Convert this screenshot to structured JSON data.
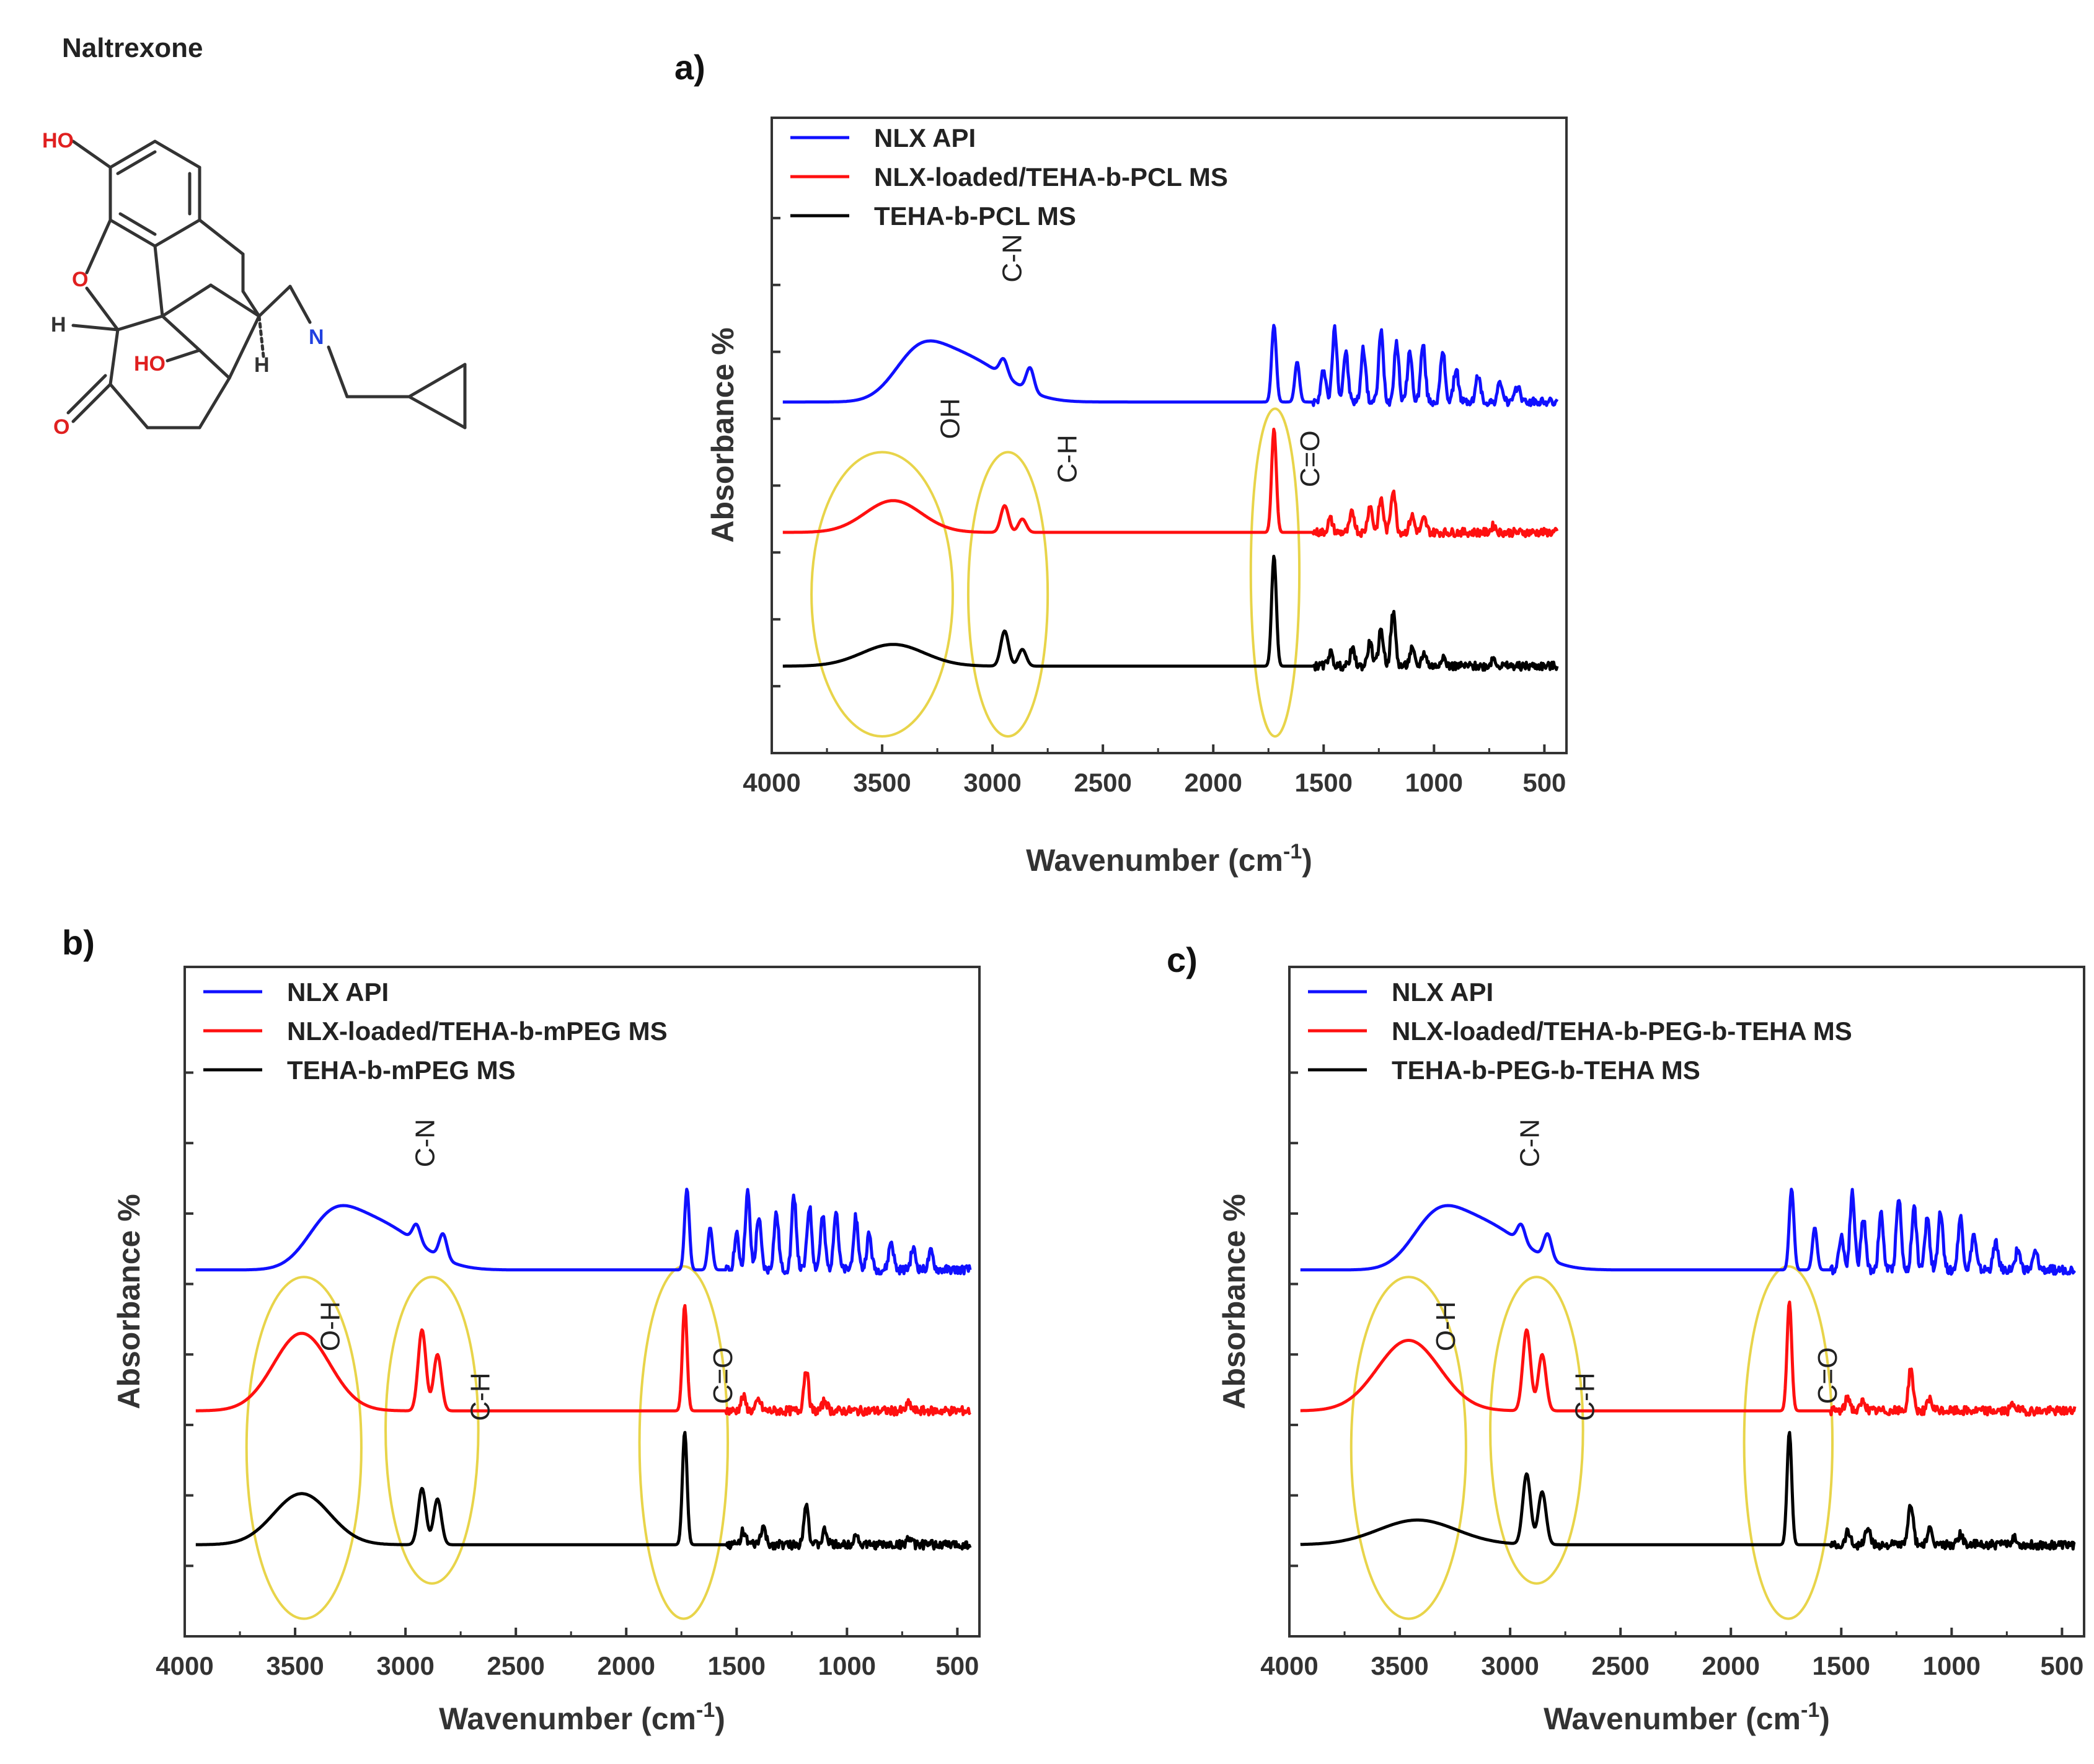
{
  "molecule": {
    "title": "Naltrexone",
    "atoms": {
      "oh_phenol": "HO",
      "ether_o": "O",
      "h_left": "H",
      "oh_mid": "HO",
      "h_right": "H",
      "n": "N",
      "ketone_o": "O"
    }
  },
  "colors": {
    "nlx_api": "#1010ff",
    "nlx_loaded": "#ff1010",
    "carrier": "#000000",
    "ellipse": "#e8d44a",
    "axis": "#333333"
  },
  "chart_data": [
    {
      "id": "a",
      "panel_label": "a)",
      "type": "line",
      "xlabel": "Wavenumber (cm",
      "xlabel_sup": "-1",
      "xlabel_end": ")",
      "ylabel": "Absorbance %",
      "xlim": [
        4000,
        400
      ],
      "x_ticks": [
        4000,
        3500,
        3000,
        2500,
        2000,
        1500,
        1000,
        500
      ],
      "series": [
        {
          "name": "NLX API",
          "color": "#1010ff",
          "baseline": 8.5,
          "peaks": [
            [
              3350,
              1.0,
              150
            ],
            [
              3200,
              1.1,
              200
            ],
            [
              3000,
              0.6,
              200
            ],
            [
              2950,
              0.5,
              25
            ],
            [
              2830,
              0.7,
              25
            ],
            [
              1725,
              2.3,
              15
            ],
            [
              1620,
              1.2,
              15
            ],
            [
              1500,
              1.0,
              15
            ],
            [
              1450,
              2.2,
              15
            ],
            [
              1400,
              1.5,
              15
            ],
            [
              1320,
              1.6,
              15
            ],
            [
              1240,
              2.1,
              15
            ],
            [
              1170,
              1.8,
              15
            ],
            [
              1110,
              1.5,
              15
            ],
            [
              1050,
              1.7,
              15
            ],
            [
              960,
              1.5,
              15
            ],
            [
              900,
              1.0,
              15
            ],
            [
              800,
              0.8,
              15
            ],
            [
              700,
              0.6,
              15
            ],
            [
              620,
              0.5,
              15
            ]
          ]
        },
        {
          "name": "NLX-loaded/TEHA-b-PCL MS",
          "color": "#ff1010",
          "baseline": 4.6,
          "peaks": [
            [
              3450,
              0.95,
              180
            ],
            [
              2945,
              0.8,
              25
            ],
            [
              2865,
              0.4,
              25
            ],
            [
              1725,
              3.1,
              15
            ],
            [
              1470,
              0.4,
              15
            ],
            [
              1370,
              0.6,
              15
            ],
            [
              1290,
              0.8,
              15
            ],
            [
              1240,
              1.0,
              15
            ],
            [
              1185,
              1.3,
              15
            ],
            [
              1100,
              0.5,
              15
            ],
            [
              1045,
              0.4,
              15
            ],
            [
              730,
              0.2,
              15
            ]
          ]
        },
        {
          "name": "TEHA-b-PCL MS",
          "color": "#000000",
          "baseline": 0.6,
          "peaks": [
            [
              3450,
              0.65,
              200
            ],
            [
              2945,
              1.05,
              25
            ],
            [
              2865,
              0.5,
              25
            ],
            [
              1725,
              3.3,
              15
            ],
            [
              1470,
              0.4,
              15
            ],
            [
              1370,
              0.5,
              15
            ],
            [
              1290,
              0.7,
              15
            ],
            [
              1240,
              1.1,
              15
            ],
            [
              1185,
              1.6,
              15
            ],
            [
              1100,
              0.5,
              15
            ],
            [
              1045,
              0.4,
              15
            ],
            [
              960,
              0.3,
              15
            ],
            [
              730,
              0.25,
              15
            ]
          ]
        }
      ],
      "annotations": [
        {
          "text": "OH",
          "x": 3150,
          "y": 8.0
        },
        {
          "text": "C-N",
          "x": 2870,
          "y": 12.8
        },
        {
          "text": "C-H",
          "x": 2620,
          "y": 6.8
        },
        {
          "text": "C=O",
          "x": 1520,
          "y": 6.8
        }
      ],
      "highlights": [
        {
          "center": 3500,
          "half_width": 320,
          "y_low": -1.5,
          "y_high": 7.0
        },
        {
          "center": 2930,
          "half_width": 180,
          "y_low": -1.5,
          "y_high": 7.0
        },
        {
          "center": 1720,
          "half_width": 110,
          "y_low": -1.5,
          "y_high": 8.3
        }
      ]
    },
    {
      "id": "b",
      "panel_label": "b)",
      "type": "line",
      "xlabel": "Wavenumber (cm",
      "xlabel_sup": "-1",
      "xlabel_end": ")",
      "ylabel": "Absorbance %",
      "xlim": [
        4000,
        400
      ],
      "x_ticks": [
        4000,
        3500,
        3000,
        2500,
        2000,
        1500,
        1000,
        500
      ],
      "series": [
        {
          "name": "NLX API",
          "color": "#1010ff",
          "baseline": 8.4,
          "peaks": [
            [
              3350,
              1.0,
              150
            ],
            [
              3200,
              1.1,
              200
            ],
            [
              3000,
              0.6,
              200
            ],
            [
              2950,
              0.5,
              25
            ],
            [
              2830,
              0.7,
              25
            ],
            [
              1725,
              2.3,
              15
            ],
            [
              1620,
              1.2,
              15
            ],
            [
              1500,
              1.0,
              15
            ],
            [
              1450,
              2.2,
              15
            ],
            [
              1400,
              1.5,
              15
            ],
            [
              1320,
              1.6,
              15
            ],
            [
              1240,
              2.1,
              15
            ],
            [
              1170,
              1.8,
              15
            ],
            [
              1110,
              1.5,
              15
            ],
            [
              1050,
              1.7,
              15
            ],
            [
              960,
              1.5,
              15
            ],
            [
              900,
              1.0,
              15
            ],
            [
              800,
              0.8,
              15
            ],
            [
              700,
              0.6,
              15
            ],
            [
              620,
              0.5,
              15
            ]
          ]
        },
        {
          "name": "NLX-loaded/TEHA-b-mPEG MS",
          "color": "#ff1010",
          "baseline": 4.4,
          "peaks": [
            [
              3470,
              2.2,
              180
            ],
            [
              2925,
              2.3,
              25
            ],
            [
              2855,
              1.6,
              25
            ],
            [
              1735,
              3.0,
              15
            ],
            [
              1470,
              0.4,
              15
            ],
            [
              1400,
              0.3,
              15
            ],
            [
              1185,
              1.2,
              15
            ],
            [
              1100,
              0.3,
              15
            ],
            [
              720,
              0.2,
              15
            ]
          ]
        },
        {
          "name": "TEHA-b-mPEG MS",
          "color": "#000000",
          "baseline": 0.6,
          "peaks": [
            [
              3470,
              1.45,
              180
            ],
            [
              2925,
              1.6,
              25
            ],
            [
              2855,
              1.3,
              25
            ],
            [
              1735,
              3.2,
              15
            ],
            [
              1470,
              0.4,
              15
            ],
            [
              1380,
              0.5,
              15
            ],
            [
              1185,
              1.2,
              15
            ],
            [
              1100,
              0.4,
              15
            ],
            [
              960,
              0.3,
              15
            ],
            [
              720,
              0.2,
              15
            ]
          ]
        }
      ],
      "annotations": [
        {
          "text": "O-H",
          "x": 3300,
          "y": 6.8
        },
        {
          "text": "C-N",
          "x": 2870,
          "y": 12.0
        },
        {
          "text": "C-H",
          "x": 2620,
          "y": 4.8
        },
        {
          "text": "C=O",
          "x": 1520,
          "y": 5.4
        }
      ],
      "highlights": [
        {
          "center": 3460,
          "half_width": 260,
          "y_low": -1.5,
          "y_high": 8.2
        },
        {
          "center": 2880,
          "half_width": 210,
          "y_low": -0.5,
          "y_high": 8.2
        },
        {
          "center": 1740,
          "half_width": 200,
          "y_low": -1.5,
          "y_high": 8.5
        }
      ]
    },
    {
      "id": "c",
      "panel_label": "c)",
      "type": "line",
      "xlabel": "Wavenumber (cm",
      "xlabel_sup": "-1",
      "xlabel_end": ")",
      "ylabel": "Absorbance %",
      "xlim": [
        4000,
        400
      ],
      "x_ticks": [
        4000,
        3500,
        3000,
        2500,
        2000,
        1500,
        1000,
        500
      ],
      "series": [
        {
          "name": "NLX API",
          "color": "#1010ff",
          "baseline": 8.4,
          "peaks": [
            [
              3350,
              1.0,
              150
            ],
            [
              3200,
              1.1,
              200
            ],
            [
              3000,
              0.6,
              200
            ],
            [
              2950,
              0.5,
              25
            ],
            [
              2830,
              0.7,
              25
            ],
            [
              1725,
              2.3,
              15
            ],
            [
              1620,
              1.2,
              15
            ],
            [
              1500,
              1.0,
              15
            ],
            [
              1450,
              2.2,
              15
            ],
            [
              1400,
              1.5,
              15
            ],
            [
              1320,
              1.6,
              15
            ],
            [
              1240,
              2.1,
              15
            ],
            [
              1170,
              1.8,
              15
            ],
            [
              1110,
              1.5,
              15
            ],
            [
              1050,
              1.7,
              15
            ],
            [
              960,
              1.5,
              15
            ],
            [
              900,
              1.0,
              15
            ],
            [
              800,
              0.8,
              15
            ],
            [
              700,
              0.6,
              15
            ],
            [
              620,
              0.5,
              15
            ]
          ]
        },
        {
          "name": "NLX-loaded/TEHA-b-PEG-b-TEHA MS",
          "color": "#ff1010",
          "baseline": 4.4,
          "peaks": [
            [
              3460,
              2.0,
              200
            ],
            [
              2925,
              2.3,
              25
            ],
            [
              2855,
              1.6,
              25
            ],
            [
              1735,
              3.1,
              15
            ],
            [
              1470,
              0.4,
              15
            ],
            [
              1400,
              0.3,
              15
            ],
            [
              1185,
              1.2,
              15
            ],
            [
              1100,
              0.3,
              15
            ],
            [
              720,
              0.2,
              15
            ]
          ]
        },
        {
          "name": "TEHA-b-PEG-b-TEHA MS",
          "color": "#000000",
          "baseline": 0.6,
          "peaks": [
            [
              3420,
              0.7,
              250
            ],
            [
              2925,
              2.0,
              25
            ],
            [
              2855,
              1.5,
              25
            ],
            [
              1735,
              3.2,
              15
            ],
            [
              1470,
              0.4,
              15
            ],
            [
              1380,
              0.5,
              15
            ],
            [
              1185,
              1.2,
              15
            ],
            [
              1100,
              0.4,
              15
            ],
            [
              960,
              0.3,
              15
            ],
            [
              720,
              0.2,
              15
            ]
          ]
        }
      ],
      "annotations": [
        {
          "text": "O-H",
          "x": 3250,
          "y": 6.8
        },
        {
          "text": "C-N",
          "x": 2870,
          "y": 12.0
        },
        {
          "text": "C-H",
          "x": 2620,
          "y": 4.8
        },
        {
          "text": "C=O",
          "x": 1520,
          "y": 5.4
        }
      ],
      "highlights": [
        {
          "center": 3460,
          "half_width": 260,
          "y_low": -1.5,
          "y_high": 8.2
        },
        {
          "center": 2880,
          "half_width": 210,
          "y_low": -0.5,
          "y_high": 8.2
        },
        {
          "center": 1740,
          "half_width": 200,
          "y_low": -1.5,
          "y_high": 8.5
        }
      ]
    }
  ]
}
